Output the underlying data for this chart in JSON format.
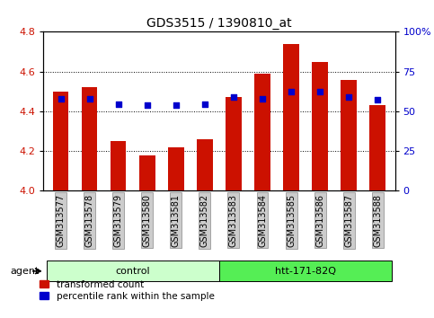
{
  "title": "GDS3515 / 1390810_at",
  "samples": [
    "GSM313577",
    "GSM313578",
    "GSM313579",
    "GSM313580",
    "GSM313581",
    "GSM313582",
    "GSM313583",
    "GSM313584",
    "GSM313585",
    "GSM313586",
    "GSM313587",
    "GSM313588"
  ],
  "red_values": [
    4.5,
    4.52,
    4.25,
    4.18,
    4.22,
    4.26,
    4.47,
    4.59,
    4.74,
    4.65,
    4.56,
    4.43
  ],
  "blue_values": [
    4.465,
    4.465,
    4.435,
    4.43,
    4.43,
    4.435,
    4.47,
    4.465,
    4.5,
    4.5,
    4.47,
    4.46
  ],
  "groups": [
    {
      "label": "control",
      "start": 0,
      "end": 6,
      "color": "#ccffcc"
    },
    {
      "label": "htt-171-82Q",
      "start": 6,
      "end": 12,
      "color": "#55ee55"
    }
  ],
  "ylim": [
    4.0,
    4.8
  ],
  "yticks_left": [
    4.0,
    4.2,
    4.4,
    4.6,
    4.8
  ],
  "yticks_right": [
    0,
    25,
    50,
    75,
    100
  ],
  "ytick_labels_right": [
    "0",
    "25",
    "50",
    "75",
    "100%"
  ],
  "bar_color": "#cc1100",
  "dot_color": "#0000cc",
  "left_tick_color": "#cc1100",
  "right_tick_color": "#0000cc",
  "agent_label": "agent",
  "legend_red": "transformed count",
  "legend_blue": "percentile rank within the sample",
  "bar_width": 0.55,
  "background_color": "#ffffff",
  "tick_bg": "#cccccc",
  "tick_border": "#888888"
}
